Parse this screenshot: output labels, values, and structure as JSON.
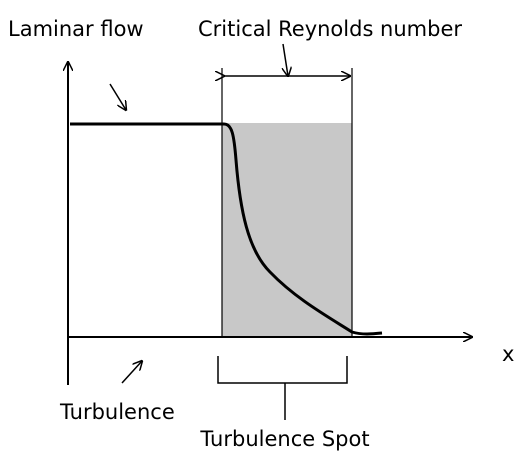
{
  "labels": {
    "laminar": "Laminar flow",
    "critical": "Critical Reynolds number",
    "axis_x": "x",
    "turbulence": "Turbulence",
    "spot": "Turbulence Spot"
  }
}
